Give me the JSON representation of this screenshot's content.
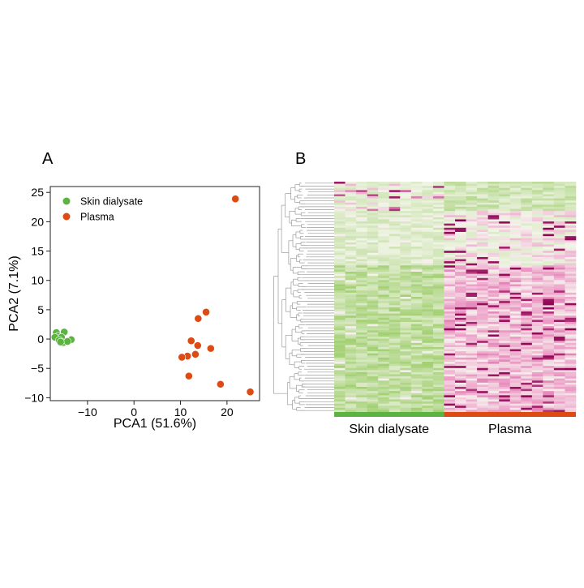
{
  "panels": {
    "a_label": "A",
    "b_label": "B"
  },
  "chart_data": [
    {
      "type": "scatter",
      "title": "",
      "xlabel": "PCA1 (51.6%)",
      "ylabel": "PCA2 (7.1%)",
      "xlim": [
        -18,
        27
      ],
      "ylim": [
        -10.5,
        26
      ],
      "xticks": [
        -10,
        0,
        10,
        20
      ],
      "yticks": [
        -10,
        -5,
        0,
        5,
        10,
        15,
        20,
        25
      ],
      "xtick_labels": [
        "−10",
        "0",
        "10",
        "20"
      ],
      "ytick_labels": [
        "−10",
        "−5",
        "0",
        "5",
        "10",
        "15",
        "20",
        "25"
      ],
      "grid": false,
      "legend_position": "top-left",
      "series": [
        {
          "name": "Skin dialysate",
          "color": "#5cb341",
          "points": [
            [
              -16.7,
              1.1
            ],
            [
              -15.0,
              1.2
            ],
            [
              -16.3,
              0.5
            ],
            [
              -15.6,
              0.3
            ],
            [
              -17.0,
              0.3
            ],
            [
              -16.1,
              -0.2
            ],
            [
              -15.2,
              -0.6
            ],
            [
              -13.5,
              -0.1
            ],
            [
              -14.3,
              -0.4
            ],
            [
              -15.8,
              -0.5
            ]
          ]
        },
        {
          "name": "Plasma",
          "color": "#dd4a12",
          "points": [
            [
              21.8,
              23.9
            ],
            [
              15.5,
              4.6
            ],
            [
              13.8,
              3.5
            ],
            [
              12.3,
              -0.3
            ],
            [
              13.7,
              -1.1
            ],
            [
              16.5,
              -1.6
            ],
            [
              11.5,
              -2.9
            ],
            [
              13.2,
              -2.6
            ],
            [
              10.3,
              -3.1
            ],
            [
              11.8,
              -6.3
            ],
            [
              18.6,
              -7.7
            ],
            [
              25.0,
              -9.0
            ]
          ]
        }
      ]
    },
    {
      "type": "heatmap",
      "title": "",
      "group_labels": [
        "Skin dialysate",
        "Plasma"
      ],
      "group_colors": [
        "#5cb341",
        "#dd4a12"
      ],
      "group_sizes": [
        10,
        12
      ],
      "dendrogram_color": "#9a9a9a",
      "palette": {
        "low": "#8dc653",
        "mid": "#f7f7f0",
        "high": "#8e0152"
      }
    }
  ]
}
